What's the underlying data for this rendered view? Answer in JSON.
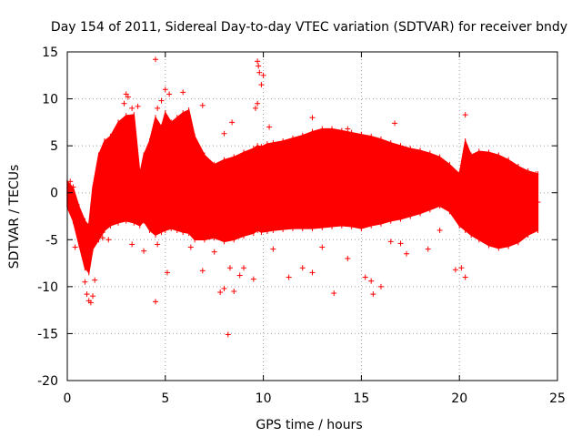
{
  "chart_data": {
    "type": "scatter",
    "title": "Day 154 of 2011, Sidereal Day-to-day VTEC variation (SDTVAR) for receiver bndy",
    "xlabel": "GPS time / hours",
    "ylabel": "SDTVAR / TECUs",
    "xlim": [
      0,
      25
    ],
    "ylim": [
      -20,
      15
    ],
    "x_ticks": [
      0,
      5,
      10,
      15,
      20,
      25
    ],
    "y_ticks": [
      -20,
      -15,
      -10,
      -5,
      0,
      5,
      10,
      15
    ],
    "grid": true,
    "marker": "+",
    "series_color": "#ff0000",
    "series": [
      {
        "name": "bndy",
        "envelope": {
          "x": [
            0.0,
            0.3,
            0.6,
            0.9,
            1.1,
            1.3,
            1.6,
            1.9,
            2.2,
            2.6,
            3.0,
            3.4,
            3.7,
            3.9,
            4.2,
            4.5,
            4.8,
            5.0,
            5.3,
            5.6,
            5.9,
            6.2,
            6.5,
            7.0,
            7.5,
            8.0,
            8.5,
            9.0,
            9.5,
            9.7,
            9.9,
            10.2,
            10.5,
            11.0,
            11.5,
            12.0,
            12.5,
            13.0,
            13.5,
            14.0,
            14.5,
            15.0,
            15.5,
            16.0,
            16.5,
            17.0,
            17.5,
            18.0,
            18.5,
            19.0,
            19.5,
            20.0,
            20.3,
            20.6,
            21.0,
            21.5,
            22.0,
            22.5,
            23.0,
            23.5,
            24.0
          ],
          "upper": [
            1.2,
            0.5,
            -1.5,
            -3.0,
            -3.5,
            0.5,
            4.0,
            5.5,
            6.0,
            7.5,
            8.2,
            8.3,
            2.0,
            4.0,
            5.5,
            8.0,
            7.0,
            8.5,
            7.5,
            8.0,
            8.5,
            8.8,
            6.0,
            4.0,
            3.0,
            3.5,
            3.8,
            4.3,
            4.7,
            5.0,
            4.9,
            5.2,
            5.3,
            5.5,
            5.8,
            6.1,
            6.5,
            6.8,
            6.8,
            6.6,
            6.4,
            6.2,
            6.0,
            5.7,
            5.3,
            5.0,
            4.7,
            4.5,
            4.2,
            3.8,
            3.0,
            2.0,
            5.5,
            4.0,
            4.4,
            4.3,
            4.0,
            3.5,
            2.8,
            2.3,
            2.0
          ],
          "lower": [
            -1.5,
            -3.0,
            -5.5,
            -8.0,
            -8.5,
            -6.0,
            -5.0,
            -4.0,
            -3.5,
            -3.2,
            -3.0,
            -3.2,
            -3.5,
            -3.0,
            -4.0,
            -4.5,
            -4.2,
            -4.0,
            -3.8,
            -4.0,
            -4.2,
            -4.3,
            -5.0,
            -5.0,
            -4.8,
            -5.2,
            -5.0,
            -4.6,
            -4.3,
            -4.0,
            -4.2,
            -4.1,
            -4.0,
            -3.9,
            -3.8,
            -3.8,
            -3.8,
            -3.7,
            -3.6,
            -3.5,
            -3.6,
            -3.8,
            -3.5,
            -3.3,
            -3.0,
            -2.8,
            -2.5,
            -2.2,
            -1.8,
            -1.4,
            -2.0,
            -3.5,
            -4.0,
            -4.5,
            -5.0,
            -5.6,
            -5.9,
            -5.7,
            -5.3,
            -4.5,
            -4.0
          ]
        },
        "points": [
          [
            4.5,
            14.2
          ],
          [
            9.7,
            14.0
          ],
          [
            9.75,
            13.5
          ],
          [
            9.8,
            12.8
          ],
          [
            10.0,
            12.5
          ],
          [
            5.0,
            11.0
          ],
          [
            5.9,
            10.7
          ],
          [
            3.0,
            10.5
          ],
          [
            3.1,
            10.2
          ],
          [
            2.9,
            9.5
          ],
          [
            6.9,
            9.3
          ],
          [
            9.7,
            9.5
          ],
          [
            3.6,
            9.2
          ],
          [
            12.5,
            8.0
          ],
          [
            20.3,
            8.3
          ],
          [
            16.7,
            7.4
          ],
          [
            14.3,
            6.8
          ],
          [
            8.0,
            6.3
          ],
          [
            8.4,
            7.5
          ],
          [
            4.8,
            9.8
          ],
          [
            5.2,
            10.5
          ],
          [
            3.3,
            9.0
          ],
          [
            2.1,
            5.5
          ],
          [
            4.6,
            9.0
          ],
          [
            9.6,
            9.0
          ],
          [
            9.9,
            11.5
          ],
          [
            10.3,
            7.0
          ],
          [
            0.15,
            1.2
          ],
          [
            1.1,
            -11.5
          ],
          [
            1.2,
            -11.7
          ],
          [
            1.0,
            -10.8
          ],
          [
            0.9,
            -9.5
          ],
          [
            1.3,
            -11.0
          ],
          [
            4.5,
            -11.6
          ],
          [
            8.2,
            -15.1
          ],
          [
            7.8,
            -10.6
          ],
          [
            8.5,
            -10.5
          ],
          [
            8.0,
            -10.2
          ],
          [
            9.5,
            -9.2
          ],
          [
            13.6,
            -10.7
          ],
          [
            15.6,
            -10.8
          ],
          [
            16.0,
            -10.0
          ],
          [
            8.8,
            -8.8
          ],
          [
            5.1,
            -8.5
          ],
          [
            6.9,
            -8.3
          ],
          [
            8.3,
            -8.0
          ],
          [
            9.0,
            -8.0
          ],
          [
            12.0,
            -8.0
          ],
          [
            15.2,
            -9.0
          ],
          [
            15.5,
            -9.4
          ],
          [
            11.3,
            -9.0
          ],
          [
            14.3,
            -7.0
          ],
          [
            12.5,
            -8.5
          ],
          [
            20.1,
            -8.0
          ],
          [
            19.8,
            -8.2
          ],
          [
            20.3,
            -9.0
          ],
          [
            17.3,
            -6.5
          ],
          [
            18.4,
            -6.0
          ],
          [
            3.3,
            -5.5
          ],
          [
            3.9,
            -6.2
          ],
          [
            4.6,
            -5.5
          ],
          [
            2.1,
            -5.0
          ],
          [
            1.8,
            -4.8
          ],
          [
            6.3,
            -5.8
          ],
          [
            7.5,
            -6.3
          ],
          [
            10.5,
            -6.0
          ],
          [
            13.0,
            -5.8
          ],
          [
            16.5,
            -5.2
          ],
          [
            17.0,
            -5.4
          ],
          [
            19.0,
            -4.0
          ],
          [
            24.0,
            -1.0
          ],
          [
            23.9,
            2.0
          ],
          [
            0.4,
            -5.8
          ],
          [
            1.4,
            -9.3
          ],
          [
            0.3,
            0.6
          ]
        ]
      }
    ]
  }
}
